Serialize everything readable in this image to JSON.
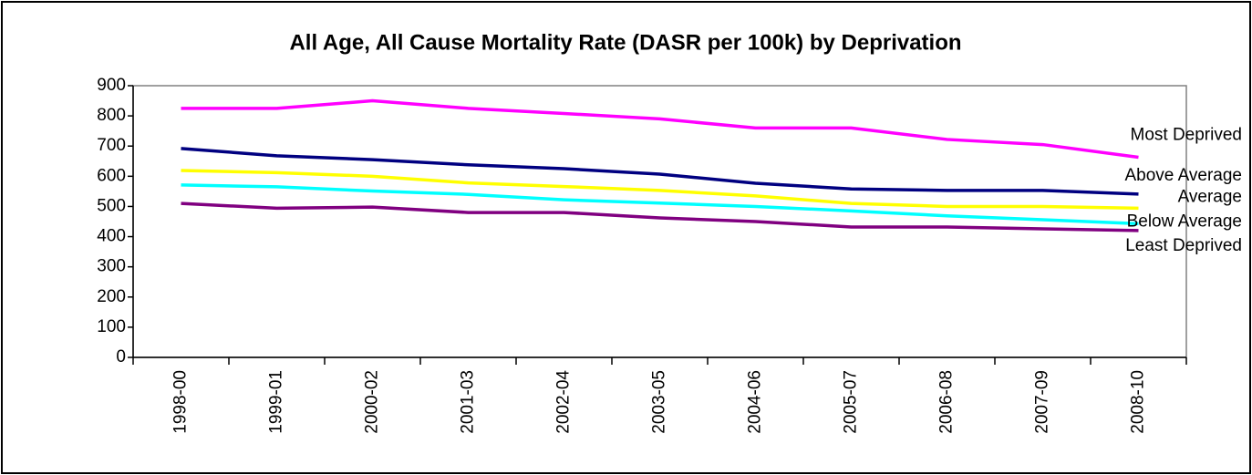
{
  "chart_data": {
    "type": "line",
    "title": "All Age, All Cause Mortality Rate (DASR per 100k) by Deprivation",
    "categories": [
      "1998-00",
      "1999-01",
      "2000-02",
      "2001-03",
      "2002-04",
      "2003-05",
      "2004-06",
      "2005-07",
      "2006-08",
      "2007-09",
      "2008-10"
    ],
    "series": [
      {
        "name": "Most Deprived",
        "color": "#ff00ff",
        "values": [
          825,
          825,
          850,
          825,
          808,
          790,
          760,
          760,
          722,
          705,
          663
        ]
      },
      {
        "name": "Above Average",
        "color": "#000080",
        "values": [
          692,
          668,
          655,
          638,
          625,
          607,
          577,
          558,
          553,
          553,
          541
        ]
      },
      {
        "name": "Average",
        "color": "#ffff00",
        "values": [
          619,
          612,
          600,
          578,
          566,
          553,
          535,
          510,
          500,
          500,
          494
        ]
      },
      {
        "name": "Below Average",
        "color": "#00ffff",
        "values": [
          571,
          565,
          551,
          540,
          522,
          511,
          500,
          485,
          469,
          456,
          443
        ]
      },
      {
        "name": "Least Deprived",
        "color": "#800080",
        "values": [
          510,
          494,
          498,
          480,
          480,
          462,
          450,
          432,
          432,
          426,
          420
        ]
      }
    ],
    "ylim": [
      0,
      900
    ],
    "yticks": [
      0,
      100,
      200,
      300,
      400,
      500,
      600,
      700,
      800,
      900
    ],
    "grid": false
  }
}
